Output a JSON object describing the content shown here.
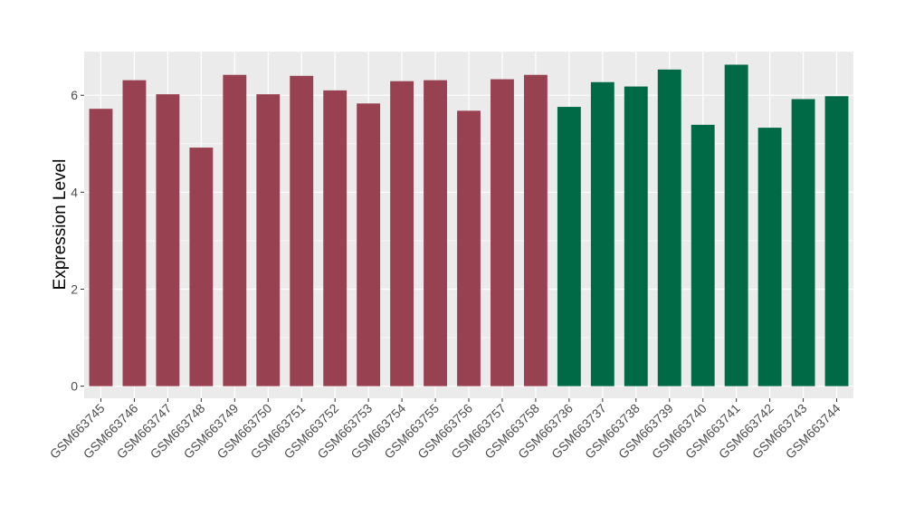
{
  "chart_data": {
    "type": "bar",
    "title": "",
    "xlabel": "",
    "ylabel": "Expression Level",
    "ylim": [
      -0.25,
      6.9
    ],
    "yticks": [
      0,
      2,
      4,
      6
    ],
    "grid": true,
    "legend": "none",
    "categories": [
      "GSM663745",
      "GSM663746",
      "GSM663747",
      "GSM663748",
      "GSM663749",
      "GSM663750",
      "GSM663751",
      "GSM663752",
      "GSM663753",
      "GSM663754",
      "GSM663755",
      "GSM663756",
      "GSM663757",
      "GSM663758",
      "GSM663736",
      "GSM663737",
      "GSM663738",
      "GSM663739",
      "GSM663740",
      "GSM663741",
      "GSM663742",
      "GSM663743",
      "GSM663744"
    ],
    "values": [
      5.72,
      6.31,
      6.02,
      4.92,
      6.42,
      6.02,
      6.4,
      6.1,
      5.83,
      6.29,
      6.31,
      5.68,
      6.33,
      6.42,
      5.76,
      6.27,
      6.18,
      6.53,
      5.39,
      6.63,
      5.33,
      5.92,
      5.98
    ],
    "group_sizes": [
      14,
      9
    ],
    "colors": [
      "#984150",
      "#006946"
    ],
    "panel_background": "#ebebeb",
    "grid_color": "#ffffff"
  }
}
